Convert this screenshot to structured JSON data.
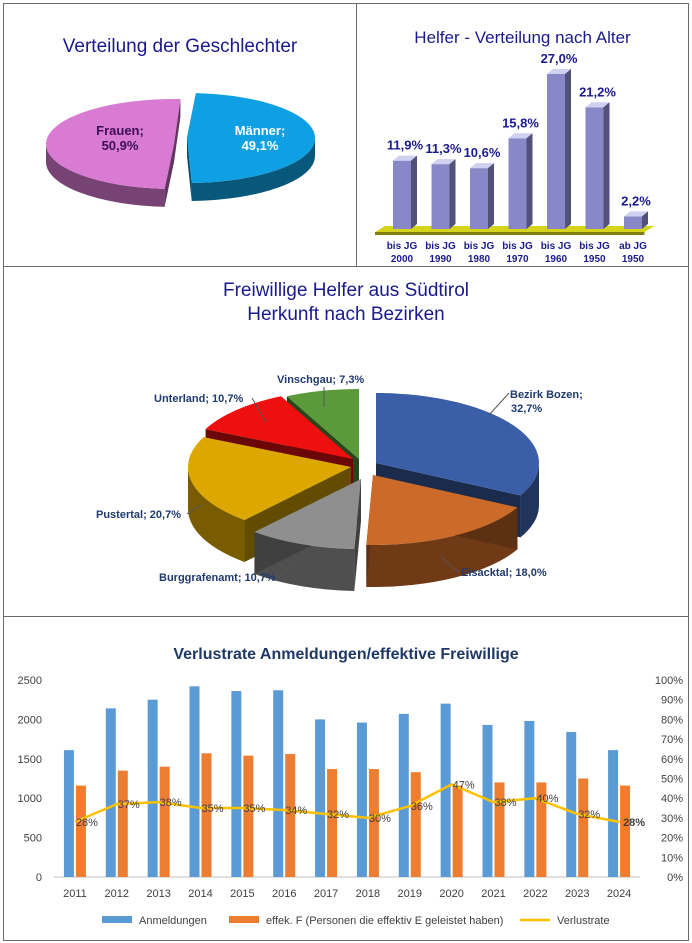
{
  "chart_data": [
    {
      "type": "pie",
      "title": "Verteilung der Geschlechter",
      "slices": [
        {
          "label": "Frauen",
          "value": 50.9,
          "value_label": "50,9%",
          "color": "#d97ad3"
        },
        {
          "label": "Männer",
          "value": 49.1,
          "value_label": "49,1%",
          "color": "#0ea0e2"
        }
      ]
    },
    {
      "type": "bar",
      "title": "Helfer - Verteilung nach Alter",
      "categories": [
        {
          "line1": "bis JG",
          "line2": "2000"
        },
        {
          "line1": "bis JG",
          "line2": "1990"
        },
        {
          "line1": "bis JG",
          "line2": "1980"
        },
        {
          "line1": "bis JG",
          "line2": "1970"
        },
        {
          "line1": "bis JG",
          "line2": "1960"
        },
        {
          "line1": "bis JG",
          "line2": "1950"
        },
        {
          "line1": "ab JG",
          "line2": "1950"
        }
      ],
      "values": [
        11.9,
        11.3,
        10.6,
        15.8,
        27.0,
        21.2,
        2.2
      ],
      "value_labels": [
        "11,9%",
        "11,3%",
        "10,6%",
        "15,8%",
        "27,0%",
        "21,2%",
        "2,2%"
      ],
      "color": "#8888c8",
      "floor_color": "#d6d41a"
    },
    {
      "type": "pie",
      "title": "Freiwillige Helfer aus Südtirol",
      "subtitle": "Herkunft nach Bezirken",
      "slices": [
        {
          "label": "Bezirk Bozen",
          "value": 32.7,
          "value_label": "32,7%",
          "color": "#3a5fa8"
        },
        {
          "label": "Eisacktal",
          "value": 18.0,
          "value_label": "18,0%",
          "color": "#cc6a2a"
        },
        {
          "label": "Burggrafenamt",
          "value": 10.7,
          "value_label": "10,7%",
          "color": "#8f8f8f"
        },
        {
          "label": "Pustertal",
          "value": 20.7,
          "value_label": "20,7%",
          "color": "#dca800"
        },
        {
          "label": "Unterland",
          "value": 10.7,
          "value_label": "10,7%",
          "color": "#ee0f0f"
        },
        {
          "label": "Vinschgau",
          "value": 7.3,
          "value_label": "7,3%",
          "color": "#5a9a3a"
        }
      ]
    },
    {
      "type": "bar",
      "title": "Verlustrate Anmeldungen/effektive Freiwillige",
      "categories": [
        "2011",
        "2012",
        "2013",
        "2014",
        "2015",
        "2016",
        "2017",
        "2018",
        "2019",
        "2020",
        "2021",
        "2022",
        "2023",
        "2024"
      ],
      "series": [
        {
          "name": "Anmeldungen",
          "type": "bar",
          "color": "#5b9bd5",
          "values": [
            1610,
            2140,
            2250,
            2420,
            2360,
            2370,
            2000,
            1960,
            2070,
            2200,
            1930,
            1980,
            1840,
            1610
          ]
        },
        {
          "name": "effek. F (Personen die effektiv E geleistet haben)",
          "type": "bar",
          "color": "#ed7d31",
          "values": [
            1160,
            1350,
            1400,
            1570,
            1540,
            1560,
            1370,
            1370,
            1330,
            1160,
            1200,
            1200,
            1250,
            1160
          ]
        },
        {
          "name": "Verlustrate",
          "type": "line",
          "axis": "right",
          "color": "#ffc000",
          "values": [
            28,
            37,
            38,
            35,
            35,
            34,
            32,
            30,
            36,
            47,
            38,
            40,
            32,
            28
          ],
          "value_labels": [
            "28%",
            "37%",
            "38%",
            "35%",
            "35%",
            "34%",
            "32%",
            "30%",
            "36%",
            "47%",
            "38%",
            "40%",
            "32%",
            "28%"
          ]
        }
      ],
      "ylim": [
        0,
        2500
      ],
      "yticks": [
        "0",
        "500",
        "1000",
        "1500",
        "2000",
        "2500"
      ],
      "y2lim": [
        0,
        100
      ],
      "y2ticks": [
        "0%",
        "10%",
        "20%",
        "30%",
        "40%",
        "50%",
        "60%",
        "70%",
        "80%",
        "90%",
        "100%"
      ],
      "grid": false,
      "legend": "bottom"
    }
  ]
}
